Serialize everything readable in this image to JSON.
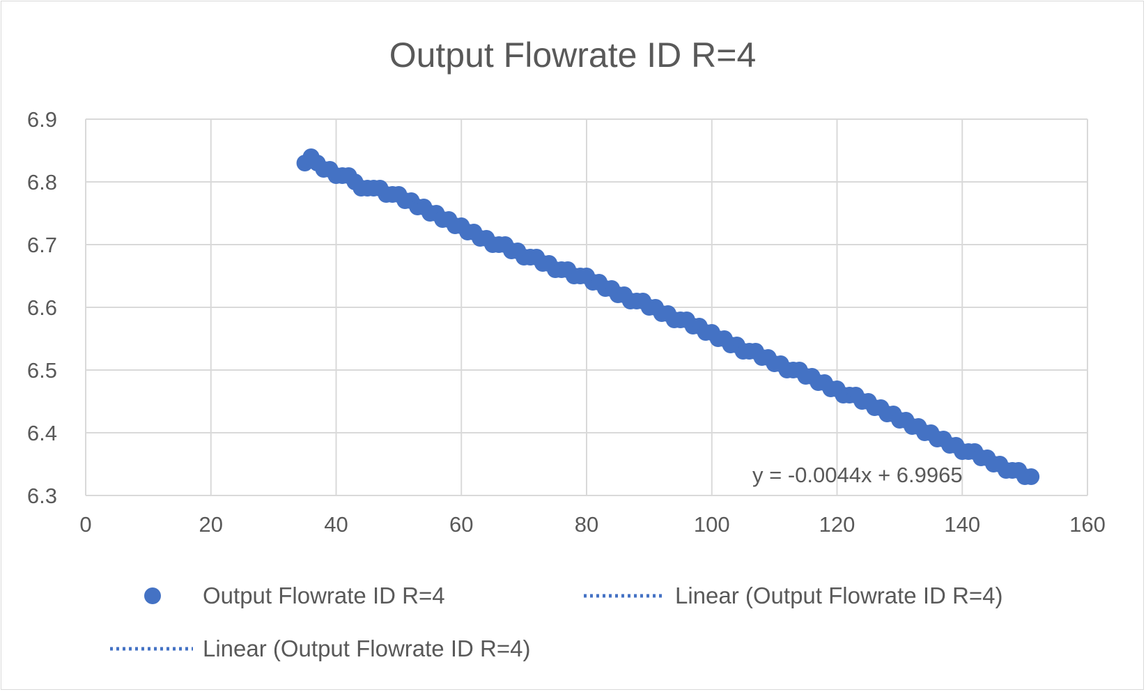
{
  "chart_data": {
    "type": "scatter",
    "title": "Output Flowrate ID R=4",
    "xlabel": "",
    "ylabel": "",
    "xlim": [
      0,
      160
    ],
    "ylim": [
      6.3,
      6.9
    ],
    "x_ticks": [
      "0",
      "20",
      "40",
      "60",
      "80",
      "100",
      "120",
      "140",
      "160"
    ],
    "y_ticks": [
      "6.3",
      "6.4",
      "6.5",
      "6.6",
      "6.7",
      "6.8",
      "6.9"
    ],
    "grid": true,
    "legend_position": "bottom",
    "series": [
      {
        "name": "Output Flowrate ID R=4",
        "color": "#4472c4",
        "x": [
          35,
          36,
          37,
          38,
          39,
          40,
          41,
          42,
          43,
          44,
          45,
          46,
          47,
          48,
          49,
          50,
          51,
          52,
          53,
          54,
          55,
          56,
          57,
          58,
          59,
          60,
          61,
          62,
          63,
          64,
          65,
          66,
          67,
          68,
          69,
          70,
          71,
          72,
          73,
          74,
          75,
          76,
          77,
          78,
          79,
          80,
          81,
          82,
          83,
          84,
          85,
          86,
          87,
          88,
          89,
          90,
          91,
          92,
          93,
          94,
          95,
          96,
          97,
          98,
          99,
          100,
          101,
          102,
          103,
          104,
          105,
          106,
          107,
          108,
          109,
          110,
          111,
          112,
          113,
          114,
          115,
          116,
          117,
          118,
          119,
          120,
          121,
          122,
          123,
          124,
          125,
          126,
          127,
          128,
          129,
          130,
          131,
          132,
          133,
          134,
          135,
          136,
          137,
          138,
          139,
          140,
          141,
          142,
          143,
          144,
          145,
          146,
          147,
          148,
          149,
          150,
          151
        ],
        "y": [
          6.83,
          6.84,
          6.83,
          6.82,
          6.82,
          6.81,
          6.81,
          6.81,
          6.8,
          6.79,
          6.79,
          6.79,
          6.79,
          6.78,
          6.78,
          6.78,
          6.77,
          6.77,
          6.76,
          6.76,
          6.75,
          6.75,
          6.74,
          6.74,
          6.73,
          6.73,
          6.72,
          6.72,
          6.71,
          6.71,
          6.7,
          6.7,
          6.7,
          6.69,
          6.69,
          6.68,
          6.68,
          6.68,
          6.67,
          6.67,
          6.66,
          6.66,
          6.66,
          6.65,
          6.65,
          6.65,
          6.64,
          6.64,
          6.63,
          6.63,
          6.62,
          6.62,
          6.61,
          6.61,
          6.61,
          6.6,
          6.6,
          6.59,
          6.59,
          6.58,
          6.58,
          6.58,
          6.57,
          6.57,
          6.56,
          6.56,
          6.55,
          6.55,
          6.54,
          6.54,
          6.53,
          6.53,
          6.53,
          6.52,
          6.52,
          6.51,
          6.51,
          6.5,
          6.5,
          6.5,
          6.49,
          6.49,
          6.48,
          6.48,
          6.47,
          6.47,
          6.46,
          6.46,
          6.46,
          6.45,
          6.45,
          6.44,
          6.44,
          6.43,
          6.43,
          6.42,
          6.42,
          6.41,
          6.41,
          6.4,
          6.4,
          6.39,
          6.39,
          6.38,
          6.38,
          6.37,
          6.37,
          6.37,
          6.36,
          6.36,
          6.35,
          6.35,
          6.34,
          6.34,
          6.34,
          6.33,
          6.33
        ]
      }
    ],
    "trendline": {
      "type": "linear",
      "slope": -0.0044,
      "intercept": 6.9965,
      "x_range": [
        35,
        151
      ],
      "color": "#4472c4",
      "equation_label": "y = -0.0044x + 6.9965"
    },
    "legend": [
      {
        "label": "Output Flowrate ID R=4",
        "marker": "circle"
      },
      {
        "label": "Linear (Output Flowrate ID R=4)",
        "marker": "dotted-line"
      },
      {
        "label": "Linear (Output Flowrate ID R=4)",
        "marker": "dotted-line"
      }
    ]
  }
}
